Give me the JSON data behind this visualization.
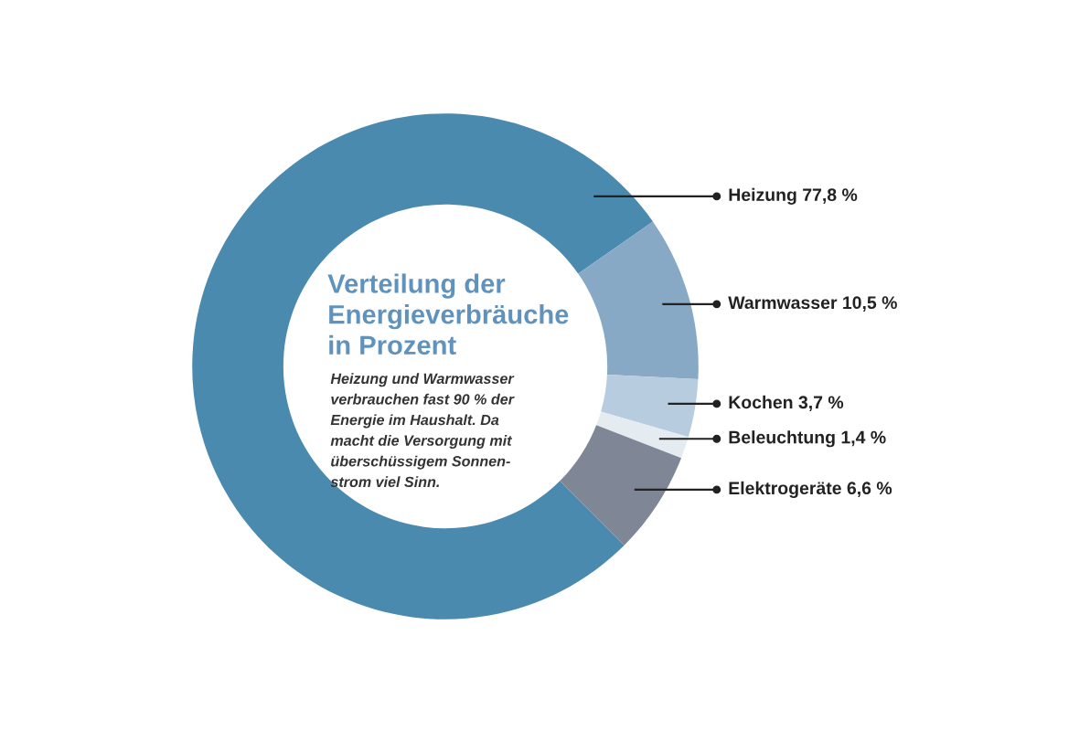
{
  "chart_data": {
    "type": "donut",
    "title": "Verteilung der\nEnergieverbräuche\nin Prozent",
    "subtitle": "Heizung und Warmwasser\nverbrauchen fast 90 % der\nEnergie im Haushalt. Da\nmacht die Versorgung mit\nüberschüssigem Sonnen-\nstrom viel Sinn.",
    "categories": [
      "Heizung",
      "Warmwasser",
      "Kochen",
      "Beleuchtung",
      "Elektrogeräte"
    ],
    "values": [
      77.8,
      10.5,
      3.7,
      1.4,
      6.6
    ],
    "colors": [
      "#4b8aaf",
      "#87a9c6",
      "#b7cddf",
      "#e4ecf2",
      "#7f8796"
    ],
    "value_labels": [
      "77,8 %",
      "10,5 %",
      "3,7 %",
      "1,4 %",
      "6,6 %"
    ]
  }
}
